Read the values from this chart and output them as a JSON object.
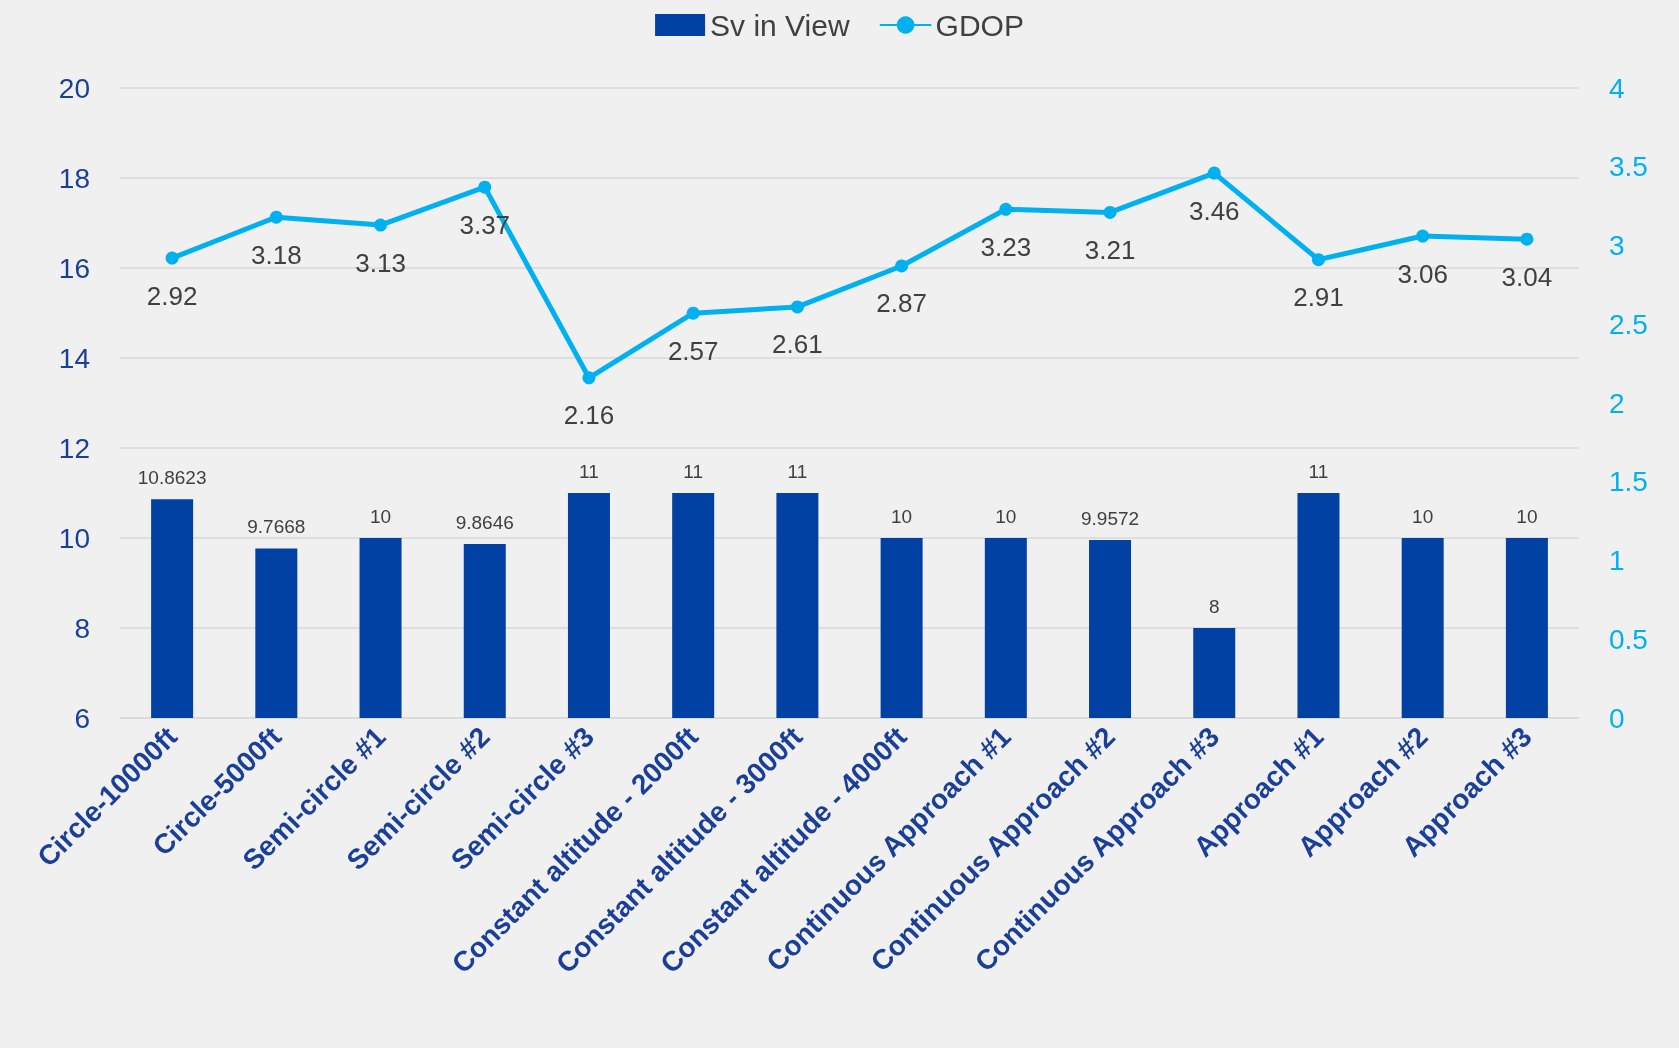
{
  "chart_data": {
    "type": "bar",
    "categories": [
      "Circle-10000ft",
      "Circle-5000ft",
      "Semi-circle #1",
      "Semi-circle #2",
      "Semi-circle #3",
      "Constant altitude - 2000ft",
      "Constant altitude - 3000ft",
      "Constant altitude - 4000ft",
      "Continuous Approach #1",
      "Continuous Approach #2",
      "Continuous Approach #3",
      "Approach #1",
      "Approach #2",
      "Approach #3"
    ],
    "series": [
      {
        "name": "Sv in View",
        "color": "#0041a3",
        "values": [
          10.8623,
          9.7668,
          10,
          9.8646,
          11,
          11,
          11,
          10,
          10,
          9.9572,
          8,
          11,
          10,
          10
        ]
      },
      {
        "name": "GDOP",
        "type": "line",
        "axis": "y2",
        "color": "#00b0f0",
        "values": [
          2.92,
          3.18,
          3.13,
          3.37,
          2.16,
          2.57,
          2.61,
          2.87,
          3.23,
          3.21,
          3.46,
          2.91,
          3.06,
          3.04
        ]
      }
    ],
    "ylim": [
      6,
      20
    ],
    "yticks": [
      6,
      8,
      10,
      12,
      14,
      16,
      18,
      20
    ],
    "y2lim": [
      0,
      4
    ],
    "y2ticks": [
      0,
      0.5,
      1,
      1.5,
      2,
      2.5,
      3,
      3.5,
      4
    ],
    "grid": "y",
    "legend": "top",
    "marker": "circle",
    "line_style": "solid",
    "data_labels": true
  }
}
